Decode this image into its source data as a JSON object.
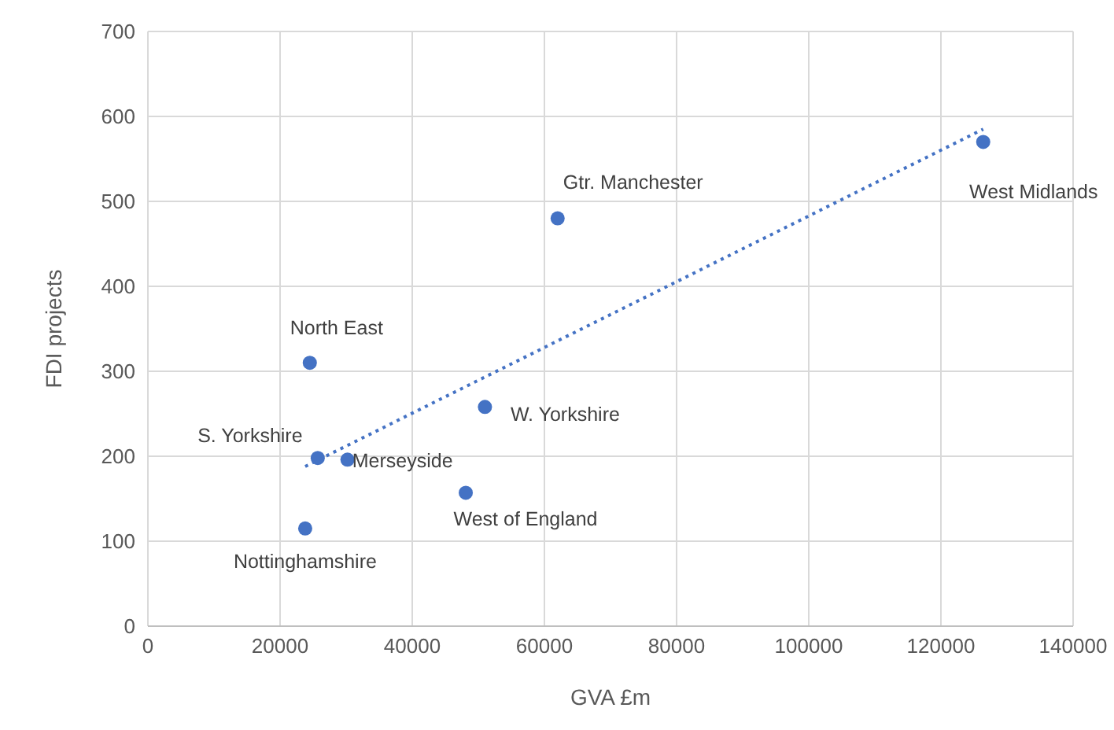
{
  "chart_data": {
    "type": "scatter",
    "xlabel": "GVA £m",
    "ylabel": "FDI projects",
    "x": [
      126400,
      62000,
      24500,
      51000,
      25700,
      30200,
      48100,
      23800
    ],
    "series": [
      {
        "color": "#4472c4",
        "values": [
          570,
          480,
          310,
          258,
          198,
          196,
          157,
          115
        ]
      },
      {
        "type": "line",
        "color": "#4472c4",
        "x": [
          23800,
          126400
        ],
        "values": [
          188,
          585
        ],
        "line_style": "dotted",
        "marker": "none"
      }
    ],
    "annotations": [
      {
        "text": "West Midlands",
        "x": 126400,
        "y": 570
      },
      {
        "text": "Gtr. Manchester",
        "x": 62000,
        "y": 480
      },
      {
        "text": "North East",
        "x": 24500,
        "y": 310
      },
      {
        "text": "W. Yorkshire",
        "x": 51000,
        "y": 258
      },
      {
        "text": "S. Yorkshire",
        "x": 25700,
        "y": 198
      },
      {
        "text": "Merseyside",
        "x": 30200,
        "y": 196
      },
      {
        "text": "West of England",
        "x": 48100,
        "y": 157
      },
      {
        "text": "Nottinghamshire",
        "x": 23800,
        "y": 115
      }
    ],
    "xlim": [
      0,
      140000
    ],
    "xticks": [
      0,
      20000,
      40000,
      60000,
      80000,
      100000,
      120000,
      140000
    ],
    "ylim": [
      0,
      700
    ],
    "yticks": [
      0,
      100,
      200,
      300,
      400,
      500,
      600,
      700
    ],
    "grid": true,
    "marker": "circle"
  }
}
